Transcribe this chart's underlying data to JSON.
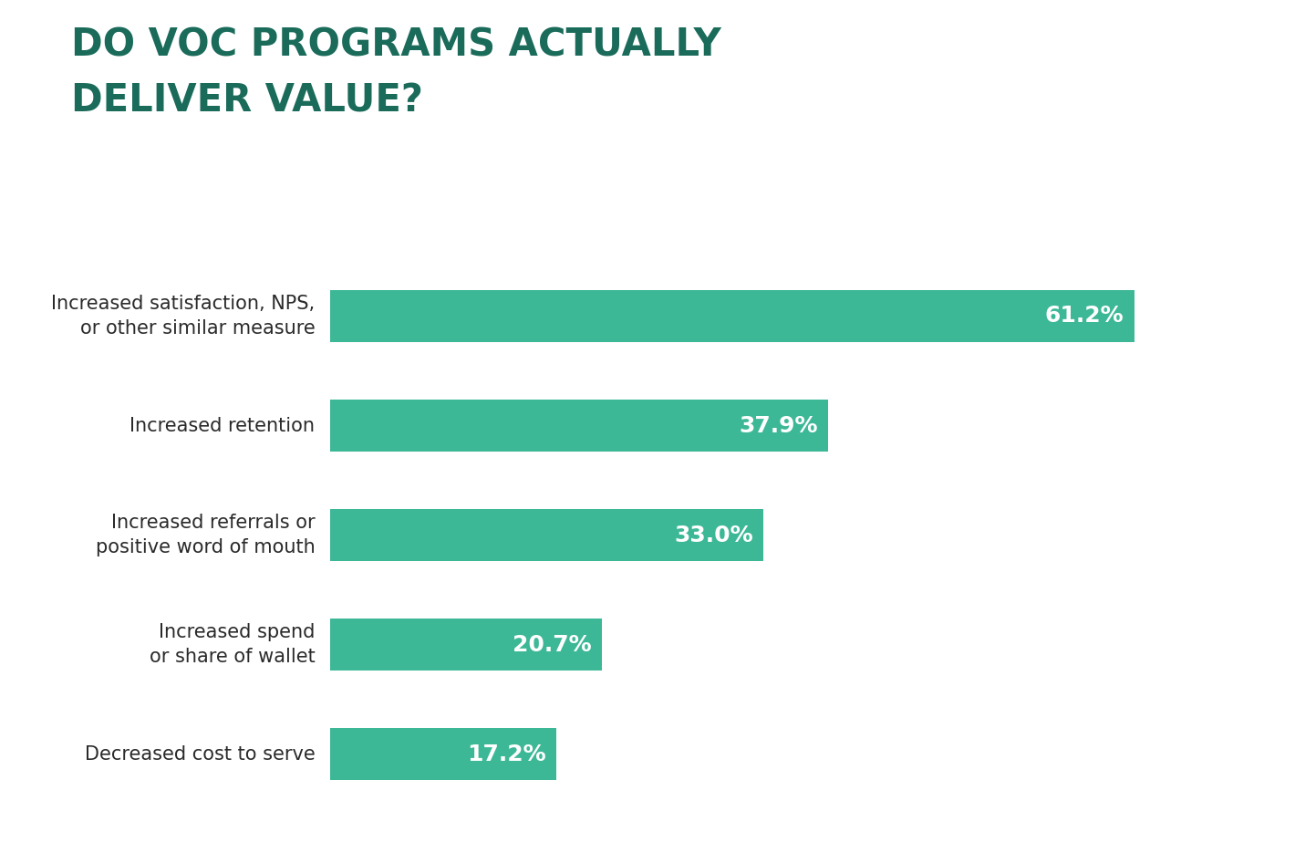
{
  "title_line1": "DO VOC PROGRAMS ACTUALLY",
  "title_line2": "DELIVER VALUE?",
  "title_color": "#1a6b5a",
  "title_fontsize": 30,
  "bar_color": "#3db897",
  "label_color": "#2a2a2a",
  "value_color": "#ffffff",
  "background_color": "#ffffff",
  "categories": [
    "Increased satisfaction, NPS,\nor other similar measure",
    "Increased retention",
    "Increased referrals or\npositive word of mouth",
    "Increased spend\nor share of wallet",
    "Decreased cost to serve"
  ],
  "values": [
    61.2,
    37.9,
    33.0,
    20.7,
    17.2
  ],
  "value_labels": [
    "61.2%",
    "37.9%",
    "33.0%",
    "20.7%",
    "17.2%"
  ],
  "xlim": [
    0,
    70
  ],
  "bar_height": 0.48,
  "label_fontsize": 15,
  "value_fontsize": 18
}
